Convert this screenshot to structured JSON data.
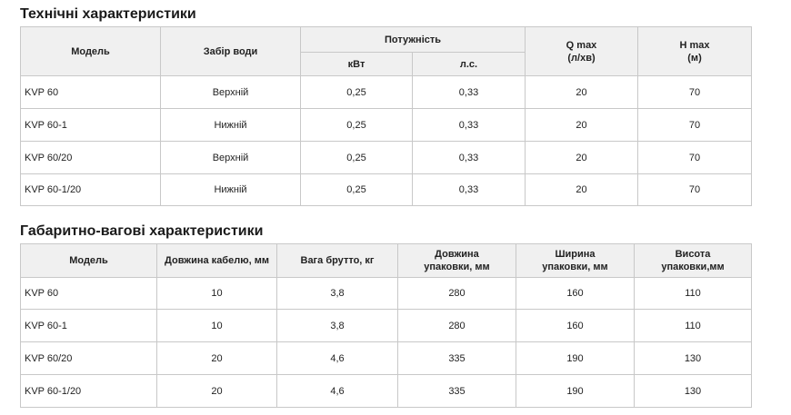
{
  "table1": {
    "title": "Технічні характеристики",
    "header": {
      "model": "Модель",
      "intake": "Забір води",
      "power": "Потужність",
      "kw": "кВт",
      "hp": "л.с.",
      "qmax": [
        "Q max",
        "(л/хв)"
      ],
      "hmax": [
        "H max",
        "(м)"
      ]
    },
    "rows": [
      [
        "KVP 60",
        "Верхній",
        "0,25",
        "0,33",
        "20",
        "70"
      ],
      [
        "KVP 60-1",
        "Нижній",
        "0,25",
        "0,33",
        "20",
        "70"
      ],
      [
        "KVP 60/20",
        "Верхній",
        "0,25",
        "0,33",
        "20",
        "70"
      ],
      [
        "KVP 60-1/20",
        "Нижній",
        "0,25",
        "0,33",
        "20",
        "70"
      ]
    ]
  },
  "table2": {
    "title": "Габаритно-вагові характеристики",
    "header": [
      [
        "Модель"
      ],
      [
        "Довжина кабелю, мм"
      ],
      [
        "Вага брутто, кг"
      ],
      [
        "Довжина",
        "упаковки, мм"
      ],
      [
        "Ширина",
        "упаковки, мм"
      ],
      [
        "Висота",
        "упаковки,мм"
      ]
    ],
    "rows": [
      [
        "KVP 60",
        "10",
        "3,8",
        "280",
        "160",
        "110"
      ],
      [
        "KVP 60-1",
        "10",
        "3,8",
        "280",
        "160",
        "110"
      ],
      [
        "KVP 60/20",
        "20",
        "4,6",
        "335",
        "190",
        "130"
      ],
      [
        "KVP 60-1/20",
        "20",
        "4,6",
        "335",
        "190",
        "130"
      ]
    ]
  }
}
